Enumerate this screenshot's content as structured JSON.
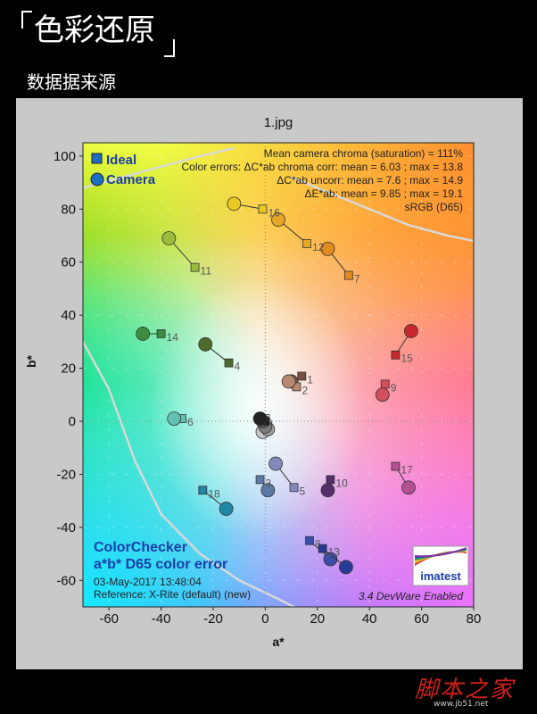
{
  "header": {
    "title": "色彩还原",
    "subtitle": "数据据来源"
  },
  "watermark": {
    "text": "脚本之家",
    "url": "www.jb51.net"
  },
  "chart_data": {
    "type": "scatter",
    "title": "1.jpg",
    "xlabel": "a*",
    "ylabel": "b*",
    "xlim": [
      -70,
      80
    ],
    "ylim": [
      -70,
      105
    ],
    "xticks": [
      -60,
      -40,
      -20,
      0,
      20,
      40,
      60,
      80
    ],
    "yticks": [
      -60,
      -40,
      -20,
      0,
      20,
      40,
      60,
      80,
      100
    ],
    "grid": true,
    "legend": {
      "position": "top-left",
      "entries": [
        "Ideal",
        "Camera"
      ]
    },
    "stats": [
      "Mean camera chroma (saturation) = 111%",
      "Color errors:  ΔC*ab chroma corr:  mean = 6.03 ;  max = 13.8",
      "ΔC*ab uncorr:  mean = 7.6 ;  max = 14.9",
      "ΔE*ab:  mean = 9.85 ;  max = 19.1",
      "sRGB (D65)"
    ],
    "footer": [
      "ColorChecker",
      "a*b* D65 color error",
      "03-May-2017 13:48:04",
      "Reference: X-Rite (default) (new)"
    ],
    "footer_right": "3.4  DevWare Enabled",
    "logo": "imatest",
    "patches": [
      {
        "label": "1",
        "ideal": [
          14,
          17
        ],
        "camera": [
          10,
          15
        ],
        "color": "#7a5040"
      },
      {
        "label": "2",
        "ideal": [
          12,
          13
        ],
        "camera": [
          9,
          15
        ],
        "color": "#b98870"
      },
      {
        "label": "3",
        "ideal": [
          -2,
          -22
        ],
        "camera": [
          1,
          -26
        ],
        "color": "#5c79a8"
      },
      {
        "label": "4",
        "ideal": [
          -14,
          22
        ],
        "camera": [
          -23,
          29
        ],
        "color": "#4f6a2d"
      },
      {
        "label": "5",
        "ideal": [
          11,
          -25
        ],
        "camera": [
          4,
          -16
        ],
        "color": "#8489bc"
      },
      {
        "label": "6",
        "ideal": [
          -32,
          1
        ],
        "camera": [
          -35,
          1
        ],
        "color": "#62c0b2"
      },
      {
        "label": "7",
        "ideal": [
          32,
          55
        ],
        "camera": [
          24,
          65
        ],
        "color": "#e38a20"
      },
      {
        "label": "8",
        "ideal": [
          17,
          -45
        ],
        "camera": [
          25,
          -52
        ],
        "color": "#3c4fa8"
      },
      {
        "label": "9",
        "ideal": [
          46,
          14
        ],
        "camera": [
          45,
          10
        ],
        "color": "#d24f5c"
      },
      {
        "label": "10",
        "ideal": [
          25,
          -22
        ],
        "camera": [
          24,
          -26
        ],
        "color": "#552f6a"
      },
      {
        "label": "11",
        "ideal": [
          -27,
          58
        ],
        "camera": [
          -37,
          69
        ],
        "color": "#9dbc3e"
      },
      {
        "label": "12",
        "ideal": [
          16,
          67
        ],
        "camera": [
          5,
          76
        ],
        "color": "#e6a726"
      },
      {
        "label": "13",
        "ideal": [
          22,
          -48
        ],
        "camera": [
          31,
          -55
        ],
        "color": "#273a96"
      },
      {
        "label": "14",
        "ideal": [
          -40,
          33
        ],
        "camera": [
          -47,
          33
        ],
        "color": "#3d8d40"
      },
      {
        "label": "15",
        "ideal": [
          50,
          25
        ],
        "camera": [
          56,
          34
        ],
        "color": "#c7282c"
      },
      {
        "label": "16",
        "ideal": [
          -1,
          80
        ],
        "camera": [
          -12,
          82
        ],
        "color": "#e8c821"
      },
      {
        "label": "17",
        "ideal": [
          50,
          -17
        ],
        "camera": [
          55,
          -25
        ],
        "color": "#b45093"
      },
      {
        "label": "18",
        "ideal": [
          -24,
          -26
        ],
        "camera": [
          -15,
          -33
        ],
        "color": "#1f87a6"
      },
      {
        "label": "",
        "ideal": [
          0,
          1
        ],
        "camera": [
          0,
          -1
        ],
        "color": "#f3f3f3"
      },
      {
        "label": "",
        "ideal": [
          0,
          -1
        ],
        "camera": [
          -1,
          -4
        ],
        "color": "#c8c8c8"
      },
      {
        "label": "",
        "ideal": [
          0,
          0
        ],
        "camera": [
          1,
          -3
        ],
        "color": "#a0a0a0"
      },
      {
        "label": "",
        "ideal": [
          0,
          0
        ],
        "camera": [
          0,
          -2
        ],
        "color": "#7a7a7a"
      },
      {
        "label": "",
        "ideal": [
          0,
          0
        ],
        "camera": [
          -1,
          0
        ],
        "color": "#555555"
      },
      {
        "label": "",
        "ideal": [
          0,
          0
        ],
        "camera": [
          -2,
          1
        ],
        "color": "#222222"
      }
    ]
  }
}
